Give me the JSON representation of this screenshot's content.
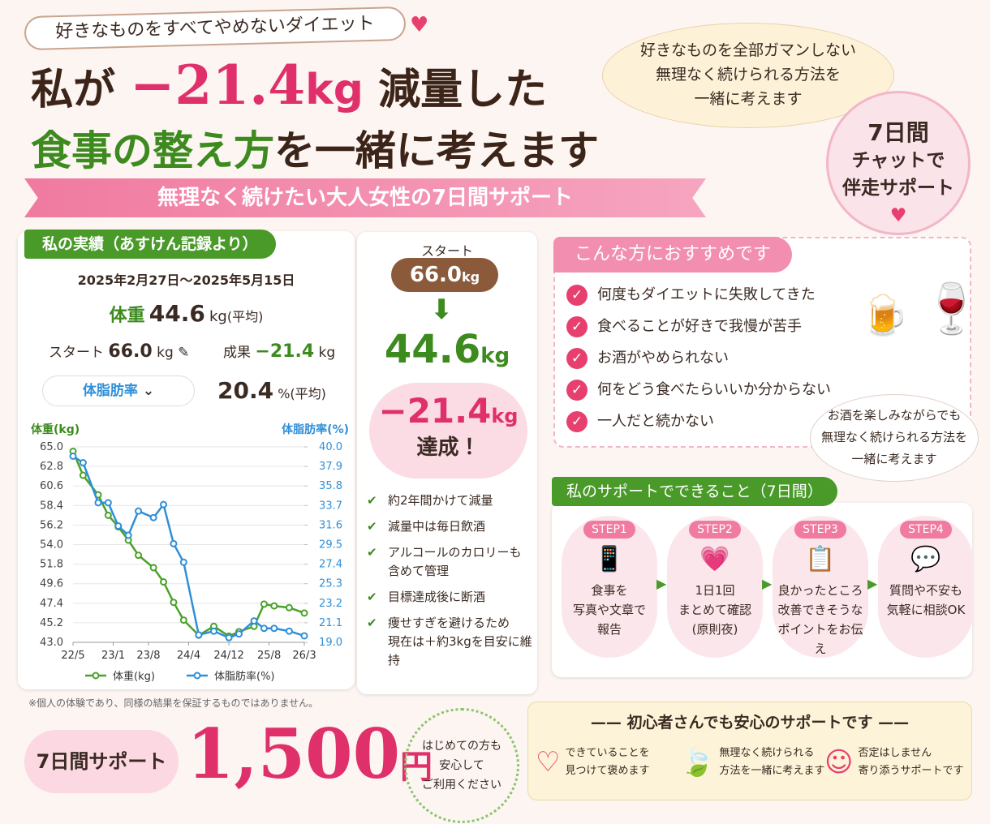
{
  "header": {
    "tag": "好きなものをすべてやめないダイエット",
    "line1": {
      "a": "私が",
      "amount": "−21.4",
      "unit": "kg",
      "b": "減量した"
    },
    "line2": {
      "a": "食事の整え方",
      "b": "を一緒に考えます"
    },
    "banner": "無理なく続けたい大人女性の7日間サポート",
    "bubble": [
      "好きなものを全部ガマンしない",
      "無理なく続けられる方法を",
      "一緒に考えます"
    ],
    "badge": [
      "7日間",
      "チャットで",
      "伴走サポート"
    ]
  },
  "results": {
    "tab": "私の実績（あすけん記録より）",
    "period": "2025年2月27日〜2025年5月15日",
    "weight_label": "体重",
    "weight_value": "44.6",
    "weight_unit": "kg",
    "weight_note": "(平均)",
    "start_label": "スタート",
    "start_value": "66.0",
    "start_unit": "kg",
    "result_label": "成果",
    "result_value": "−21.4",
    "result_unit": "kg",
    "dropdown": "体脂肪率",
    "fat_value": "20.4",
    "fat_unit": "%",
    "fat_note": "(平均)",
    "disclaimer": "※個人の体験であり、同様の結果を保証するものではありません。"
  },
  "chart_data": {
    "type": "line",
    "ylabel": "体重(kg)",
    "y2label": "体脂肪率(%)",
    "x": [
      0,
      2,
      5,
      7,
      9,
      11,
      13,
      16,
      18,
      20,
      22,
      25,
      28,
      31,
      33,
      36,
      38,
      40,
      43,
      46
    ],
    "xlim": [
      0,
      46
    ],
    "xticks": [
      {
        "value": 0,
        "label": "22/5"
      },
      {
        "value": 8,
        "label": "23/1"
      },
      {
        "value": 15,
        "label": "23/8"
      },
      {
        "value": 23,
        "label": "24/4"
      },
      {
        "value": 31,
        "label": "24/12"
      },
      {
        "value": 39,
        "label": "25/8"
      },
      {
        "value": 46,
        "label": "26/3"
      }
    ],
    "ylim": [
      43,
      65
    ],
    "yticks": [
      {
        "value": 65,
        "label": "65.0"
      },
      62.8,
      60.6,
      58.4,
      56.2,
      {
        "value": 54,
        "label": "54.0"
      },
      51.8,
      49.6,
      47.4,
      45.2,
      {
        "value": 43,
        "label": "43.0"
      }
    ],
    "y2lim": [
      19,
      40
    ],
    "y2ticks": [
      {
        "value": 40,
        "label": "40.0"
      },
      37.9,
      35.8,
      33.7,
      31.6,
      29.5,
      27.4,
      25.3,
      23.2,
      21.1,
      {
        "value": 19,
        "label": "19.0"
      }
    ],
    "series": [
      {
        "name": "体重(kg)",
        "color": "#4aa22a",
        "values": [
          64.5,
          61.8,
          59.6,
          57.3,
          56.0,
          54.5,
          52.8,
          51.4,
          49.8,
          47.5,
          45.5,
          43.8,
          44.8,
          43.7,
          44.2,
          44.8,
          47.3,
          47.1,
          46.9,
          46.3
        ]
      },
      {
        "name": "体脂肪率(%)",
        "color": "#2f8fd8",
        "axis": "y2",
        "values": [
          39.0,
          38.3,
          34.0,
          34.0,
          31.5,
          30.5,
          33.1,
          32.4,
          33.8,
          29.6,
          27.6,
          19.8,
          20.2,
          19.5,
          19.9,
          21.3,
          20.5,
          20.5,
          20.2,
          19.7
        ]
      }
    ]
  },
  "progress": {
    "start_label": "スタート",
    "start_value": "66.0",
    "start_unit": "kg",
    "now_value": "44.6",
    "now_unit": "kg",
    "diff_value": "−21.4",
    "diff_unit": "kg",
    "achieved": "達成！",
    "checks": [
      [
        "約2年間かけて減量"
      ],
      [
        "減量中は毎日飲酒"
      ],
      [
        "アルコールのカロリーも",
        "含めて管理"
      ],
      [
        "目標達成後に断酒"
      ],
      [
        "痩せすぎを避けるため",
        "現在は＋約3kgを目安に維持"
      ]
    ]
  },
  "recommend": {
    "title": "こんな方におすすめです",
    "items": [
      "何度もダイエットに失敗してきた",
      "食べることが好きで我慢が苦手",
      "お酒がやめられない",
      "何をどう食べたらいいか分からない",
      "一人だと続かない"
    ],
    "bubble": [
      "お酒を楽しみながらでも",
      "無理なく続けられる方法を",
      "一緒に考えます"
    ]
  },
  "support": {
    "title": "私のサポートでできること（7日間）",
    "steps": [
      {
        "label": "STEP1",
        "lines": [
          "食事を",
          "写真や文章で",
          "報告"
        ]
      },
      {
        "label": "STEP2",
        "lines": [
          "1日1回",
          "まとめて確認",
          "(原則夜)"
        ]
      },
      {
        "label": "STEP3",
        "lines": [
          "良かったところ",
          "改善できそうな",
          "ポイントをお伝え"
        ]
      },
      {
        "label": "STEP4",
        "lines": [
          "質問や不安も",
          "気軽に相談OK"
        ]
      }
    ]
  },
  "price": {
    "label": "7日間サポート",
    "amount": "1,500",
    "unit": "円",
    "badge": [
      "はじめての方も",
      "安心して",
      "ご利用ください"
    ]
  },
  "reassure": {
    "title": "初心者さんでも安心のサポートです",
    "items": [
      [
        "できていることを",
        "見つけて褒めます"
      ],
      [
        "無理なく続けられる",
        "方法を一緒に考えます"
      ],
      [
        "否定はしません",
        "寄り添うサポートです"
      ]
    ]
  }
}
